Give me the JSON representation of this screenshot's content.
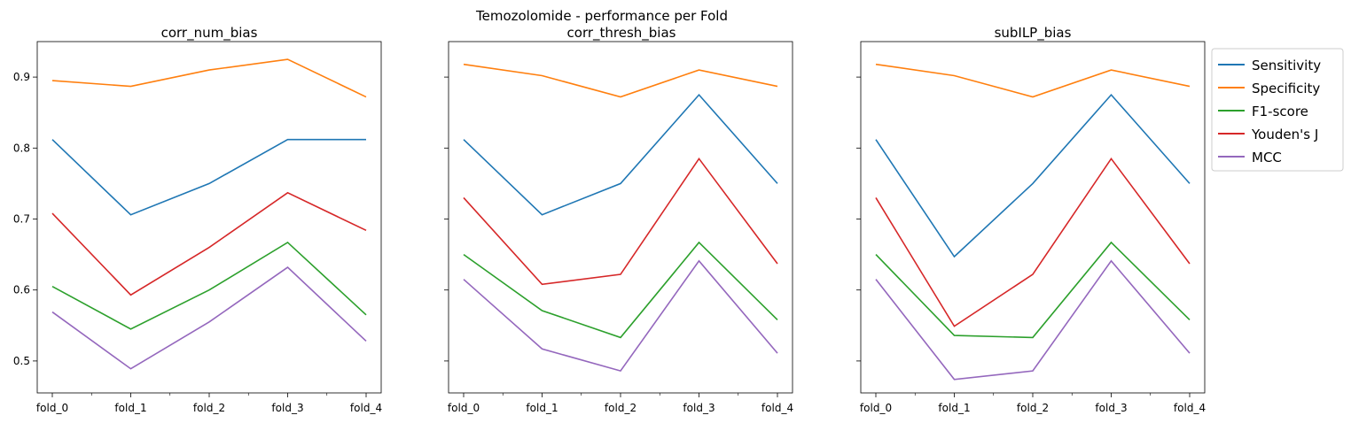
{
  "figure_title": "Temozolomide - performance per Fold",
  "colors": {
    "Sensitivity": "#1f77b4",
    "Specificity": "#ff7f0e",
    "F1-score": "#2ca02c",
    "Youden's J": "#d62728",
    "MCC": "#9467bd"
  },
  "legend": {
    "placement": "outside-right",
    "entries": [
      "Sensitivity",
      "Specificity",
      "F1-score",
      "Youden's J",
      "MCC"
    ]
  },
  "chart_data": [
    {
      "type": "line",
      "title": "corr_num_bias",
      "x": [
        "fold_0",
        "fold_1",
        "fold_2",
        "fold_3",
        "fold_4"
      ],
      "ylim": [
        0.455,
        0.95
      ],
      "yticks": [
        0.5,
        0.6,
        0.7,
        0.8,
        0.9
      ],
      "grid": false,
      "series": [
        {
          "name": "Sensitivity",
          "values": [
            0.812,
            0.706,
            0.75,
            0.812,
            0.812
          ]
        },
        {
          "name": "Specificity",
          "values": [
            0.895,
            0.887,
            0.91,
            0.925,
            0.872
          ]
        },
        {
          "name": "F1-score",
          "values": [
            0.605,
            0.545,
            0.6,
            0.667,
            0.565
          ]
        },
        {
          "name": "Youden's J",
          "values": [
            0.708,
            0.593,
            0.66,
            0.737,
            0.684
          ]
        },
        {
          "name": "MCC",
          "values": [
            0.569,
            0.489,
            0.555,
            0.632,
            0.528
          ]
        }
      ]
    },
    {
      "type": "line",
      "title": "corr_thresh_bias",
      "x": [
        "fold_0",
        "fold_1",
        "fold_2",
        "fold_3",
        "fold_4"
      ],
      "ylim": [
        0.455,
        0.95
      ],
      "yticks": [
        0.5,
        0.6,
        0.7,
        0.8,
        0.9
      ],
      "grid": false,
      "series": [
        {
          "name": "Sensitivity",
          "values": [
            0.812,
            0.706,
            0.75,
            0.875,
            0.75
          ]
        },
        {
          "name": "Specificity",
          "values": [
            0.918,
            0.902,
            0.872,
            0.91,
            0.887
          ]
        },
        {
          "name": "F1-score",
          "values": [
            0.65,
            0.571,
            0.533,
            0.667,
            0.558
          ]
        },
        {
          "name": "Youden's J",
          "values": [
            0.73,
            0.608,
            0.622,
            0.785,
            0.637
          ]
        },
        {
          "name": "MCC",
          "values": [
            0.615,
            0.517,
            0.486,
            0.641,
            0.511
          ]
        }
      ]
    },
    {
      "type": "line",
      "title": "subILP_bias",
      "x": [
        "fold_0",
        "fold_1",
        "fold_2",
        "fold_3",
        "fold_4"
      ],
      "ylim": [
        0.455,
        0.95
      ],
      "yticks": [
        0.5,
        0.6,
        0.7,
        0.8,
        0.9
      ],
      "grid": false,
      "series": [
        {
          "name": "Sensitivity",
          "values": [
            0.812,
            0.647,
            0.75,
            0.875,
            0.75
          ]
        },
        {
          "name": "Specificity",
          "values": [
            0.918,
            0.902,
            0.872,
            0.91,
            0.887
          ]
        },
        {
          "name": "F1-score",
          "values": [
            0.65,
            0.536,
            0.533,
            0.667,
            0.558
          ]
        },
        {
          "name": "Youden's J",
          "values": [
            0.73,
            0.549,
            0.622,
            0.785,
            0.637
          ]
        },
        {
          "name": "MCC",
          "values": [
            0.615,
            0.474,
            0.486,
            0.641,
            0.511
          ]
        }
      ]
    }
  ]
}
